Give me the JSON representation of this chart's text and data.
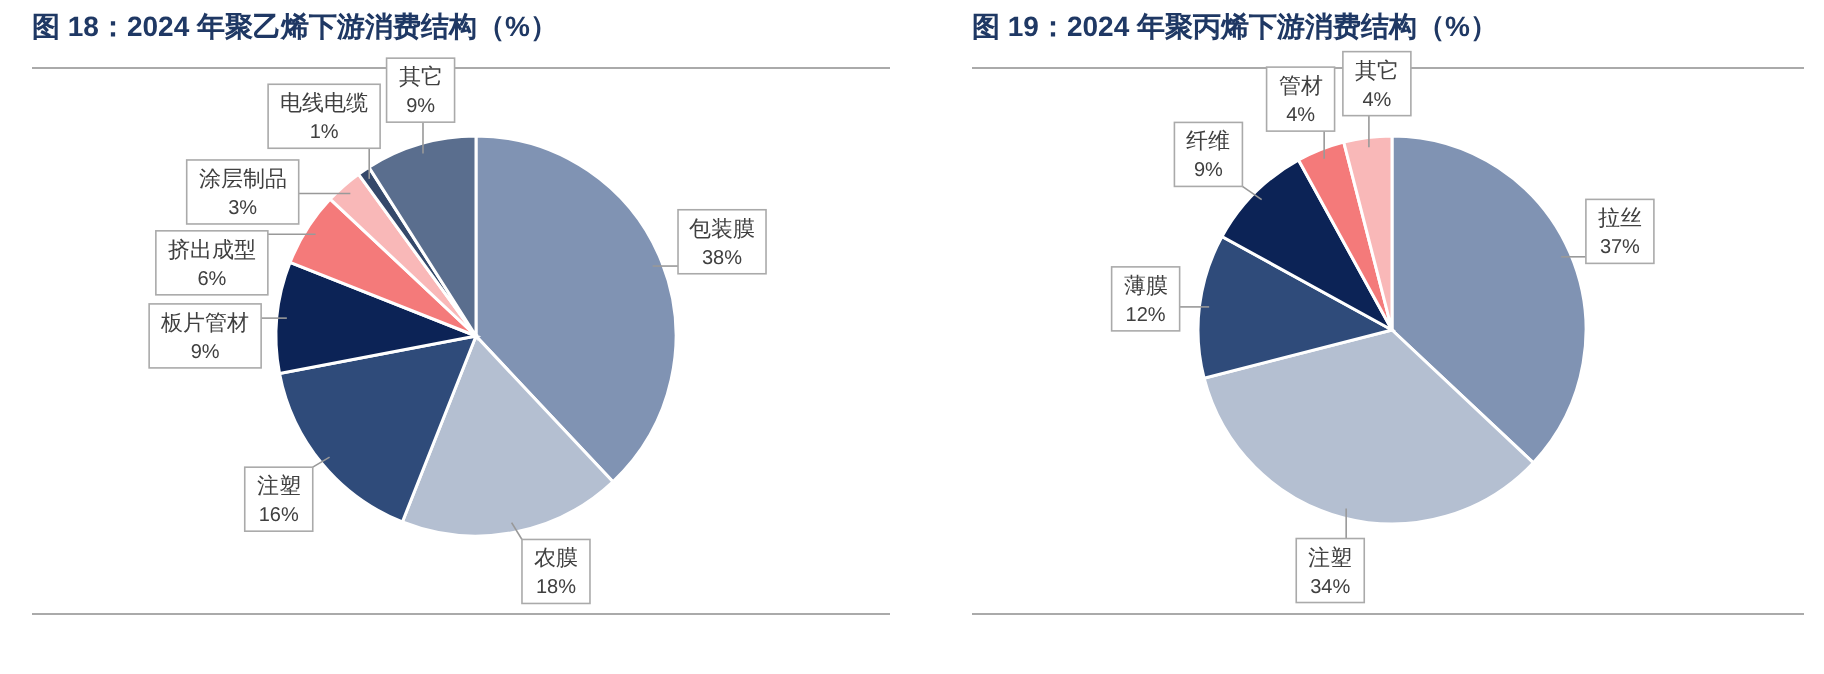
{
  "chart_data": [
    {
      "type": "pie",
      "title": "图 18：2024 年聚乙烯下游消费结构（%）",
      "categories": [
        "包装膜",
        "农膜",
        "注塑",
        "板片管材",
        "挤出成型",
        "涂层制品",
        "电线电缆",
        "其它"
      ],
      "values": [
        38,
        18,
        16,
        9,
        6,
        3,
        1,
        9
      ],
      "colors": [
        "#8093b3",
        "#b4bfd1",
        "#2f4b7a",
        "#0c2356",
        "#f47a7a",
        "#f9b8b8",
        "#34486a",
        "#5a6e8e"
      ],
      "value_labels": [
        "38%",
        "18%",
        "16%",
        "9%",
        "6%",
        "3%",
        "1%",
        "9%"
      ]
    },
    {
      "type": "pie",
      "title": "图 19：2024 年聚丙烯下游消费结构（%）",
      "categories": [
        "拉丝",
        "注塑",
        "薄膜",
        "纤维",
        "管材",
        "其它"
      ],
      "values": [
        37,
        34,
        12,
        9,
        4,
        4
      ],
      "colors": [
        "#8093b3",
        "#b4bfd1",
        "#2f4b7a",
        "#0c2356",
        "#f47a7a",
        "#f9b8b8"
      ],
      "value_labels": [
        "37%",
        "34%",
        "12%",
        "9%",
        "4%",
        "4%"
      ]
    }
  ]
}
